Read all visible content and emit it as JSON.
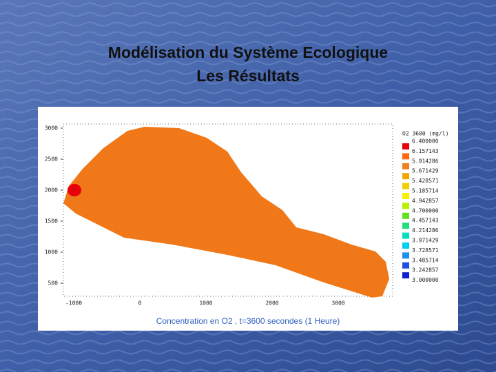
{
  "slide": {
    "title": [
      "Modélisation du Système Ecologique",
      "Les Résultats"
    ]
  },
  "plot": {
    "yticks": [
      "3000",
      "2500",
      "2000",
      "1500",
      "1000",
      "500"
    ],
    "xticks": [
      "-1000",
      "0",
      "1000",
      "2000",
      "3000"
    ],
    "legend": {
      "title": "O2  3600  (mg/l)",
      "labels": [
        "6.400000",
        "6.157143",
        "5.914286",
        "5.671429",
        "5.428571",
        "5.185714",
        "4.942857",
        "4.700000",
        "4.457143",
        "4.214286",
        "3.971429",
        "3.728571",
        "3.485714",
        "3.242857",
        "3.000000"
      ]
    },
    "caption": "Concentration en O2 , t=3600 secondes (1 Heure)"
  }
}
